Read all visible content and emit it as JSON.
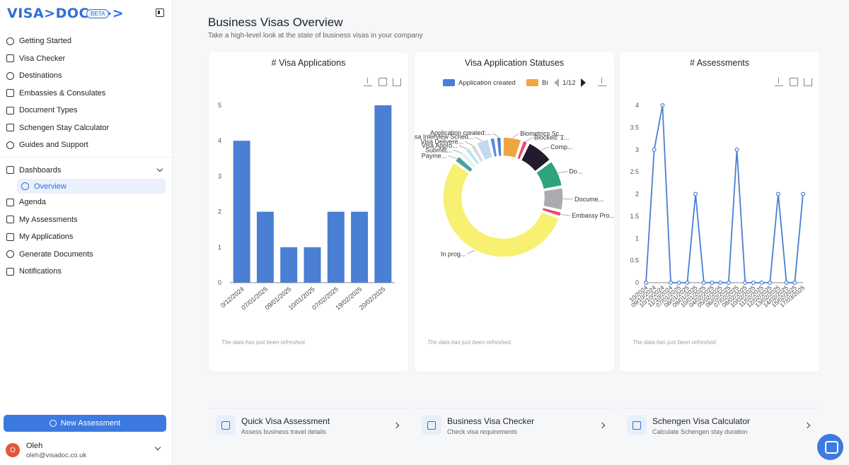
{
  "brand": {
    "logo": "VISA>DOC>>>",
    "badge": "BETA"
  },
  "sidebar": {
    "items": [
      {
        "label": "Getting Started",
        "icon": "rocket-icon"
      },
      {
        "label": "Visa Checker",
        "icon": "copy-icon"
      },
      {
        "label": "Destinations",
        "icon": "map-pin-icon"
      },
      {
        "label": "Embassies & Consulates",
        "icon": "building-icon"
      },
      {
        "label": "Document Types",
        "icon": "document-icon"
      },
      {
        "label": "Schengen Stay Calculator",
        "icon": "calendar-icon"
      },
      {
        "label": "Guides and Support",
        "icon": "help-icon"
      }
    ],
    "dashboards_label": "Dashboards",
    "overview_label": "Overview",
    "items2": [
      {
        "label": "Agenda",
        "icon": "calendar-icon"
      },
      {
        "label": "My Assessments",
        "icon": "document-icon"
      },
      {
        "label": "My Applications",
        "icon": "document-icon"
      },
      {
        "label": "Generate Documents",
        "icon": "sparkle-icon"
      },
      {
        "label": "Notifications",
        "icon": "bell-icon"
      }
    ],
    "new_assessment": "New Assessment",
    "user": {
      "initial": "O",
      "name": "Oleh",
      "email": "oleh@visadoc.co.uk"
    }
  },
  "header": {
    "title": "Business Visas Overview",
    "subtitle": "Take a high-level look at the state of business visas in your company"
  },
  "refreshed_note": "The data has just been refreshed.",
  "chart_data": [
    {
      "type": "bar",
      "title": "# Visa Applications",
      "categories": [
        "0/12/2024",
        "07/01/2025",
        "09/01/2025",
        "10/01/2025",
        "07/02/2025",
        "19/02/2025",
        "20/02/2025"
      ],
      "values": [
        4,
        2,
        1,
        1,
        2,
        2,
        5
      ],
      "ylim": [
        0,
        5
      ],
      "yticks": [
        "0",
        "1",
        "2",
        "3",
        "4",
        "5"
      ],
      "color": "#4a7fd4"
    },
    {
      "type": "pie",
      "title": "Visa Application Statuses",
      "legend": {
        "items": [
          {
            "name": "Application created",
            "color": "#4a7fd4"
          },
          {
            "name": "Bi",
            "color": "#f0a640"
          }
        ],
        "page": "1/12"
      },
      "slices": [
        {
          "label": "In prog...",
          "value": 50,
          "color": "#f7f071"
        },
        {
          "label": "Paymе...",
          "value": 2,
          "color": "#4aa39c"
        },
        {
          "label": "Submitt...",
          "value": 1.6,
          "color": "#e9eef5"
        },
        {
          "label": "Visa Appro...",
          "value": 1.6,
          "color": "#aeeaf5"
        },
        {
          "label": "Visa Delivere...",
          "value": 1.6,
          "color": "#d9d9d9"
        },
        {
          "label": "Visa Interview Sched...",
          "value": 3.5,
          "color": "#c6d8f0"
        },
        {
          "label": "",
          "value": 1.6,
          "color": "#5b8bd8"
        },
        {
          "label": "Application created:...",
          "value": 1.6,
          "color": "#4a7fd4"
        },
        {
          "label": "Biometrics Sc...",
          "value": 5,
          "color": "#f0a640"
        },
        {
          "label": "Blocked: 1...",
          "value": 1.6,
          "color": "#e84a68"
        },
        {
          "label": "Comp...",
          "value": 7,
          "color": "#231a2e"
        },
        {
          "label": "Do...",
          "value": 7,
          "color": "#2ea37d"
        },
        {
          "label": "Docume...",
          "value": 6,
          "color": "#a9abb0"
        },
        {
          "label": "Embassy Pro...",
          "value": 1.6,
          "color": "#e84a68"
        }
      ]
    },
    {
      "type": "line",
      "title": "# Assessments",
      "values": [
        0,
        3,
        4,
        0,
        0,
        0,
        2,
        0,
        0,
        0,
        0,
        3,
        0,
        0,
        0,
        0,
        2,
        0,
        0,
        2
      ],
      "ylim": [
        0,
        4
      ],
      "yticks": [
        "0",
        "0.5",
        "1",
        "1.5",
        "2",
        "2.5",
        "3",
        "3.5",
        "4"
      ],
      "categories": [
        "10/2024",
        "09/10/2024",
        "10/10/2024",
        "11/10/2024",
        "07/01/2025",
        "08/01/2025",
        "09/01/2025",
        "10/01/2025",
        "04/02/2025",
        "05/02/2025",
        "06/02/2025",
        "07/02/2025",
        "08/02/2025",
        "10/02/2025",
        "11/02/2025",
        "12/02/2025",
        "13/02/2025",
        "14/02/2025",
        "15/02/2025",
        "17/03/2025"
      ],
      "color": "#4a7fd4"
    }
  ],
  "bottom_cards": [
    {
      "title": "Quick Visa Assessment",
      "sub": "Assess business travel details",
      "icon": "copy-icon"
    },
    {
      "title": "Business Visa Checker",
      "sub": "Check visa requirements",
      "icon": "passport-icon"
    },
    {
      "title": "Schengen Visa Calculator",
      "sub": "Calculate Schengen stay duration",
      "icon": "globe-icon"
    }
  ]
}
